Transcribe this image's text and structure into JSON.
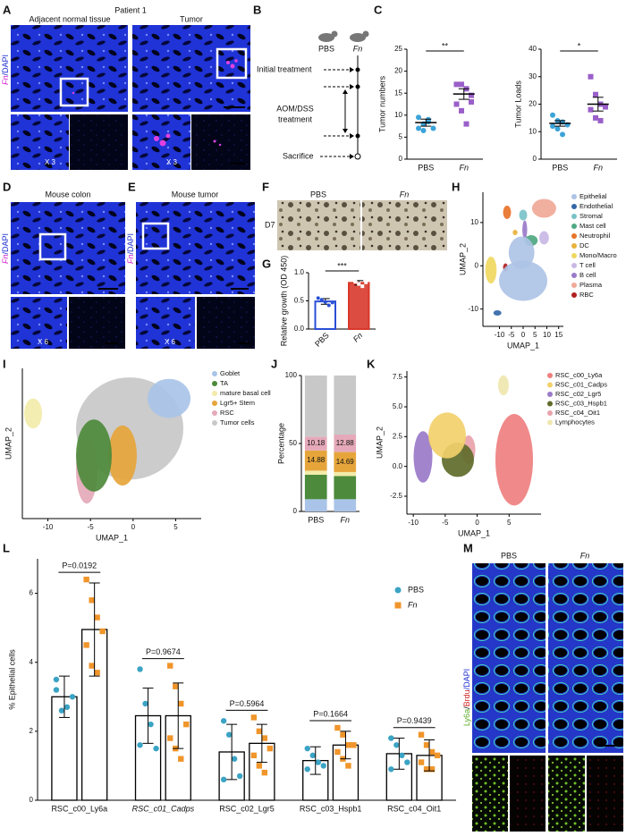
{
  "panels": {
    "letters": [
      "A",
      "B",
      "C",
      "D",
      "E",
      "F",
      "G",
      "H",
      "I",
      "J",
      "K",
      "L",
      "M"
    ]
  },
  "A": {
    "title": "Patient 1",
    "left": "Adjacent normal tissue",
    "right": "Tumor",
    "stain": [
      "Fn",
      "/DAPI"
    ],
    "zoom": [
      "X 3",
      "X 3"
    ]
  },
  "B": {
    "groups": [
      "PBS",
      "Fn"
    ],
    "steps": [
      "Initial treatment",
      "AOM/DSS",
      "treatment",
      "Sacrifice"
    ]
  },
  "D": {
    "title": "Mouse colon",
    "stain": [
      "Fn",
      "/DAPI"
    ],
    "zoom": "X 6"
  },
  "E": {
    "title": "Mouse tumor",
    "stain": [
      "Fn",
      "/DAPI"
    ],
    "zoom": "X 6"
  },
  "F": {
    "groups": [
      "PBS",
      "Fn"
    ],
    "day": "D7"
  },
  "M": {
    "groups": [
      "PBS",
      "Fn"
    ],
    "stain": [
      "Ly6a",
      "/",
      "Brdu",
      "/DAPI"
    ]
  },
  "chart_data": [
    {
      "type": "dot",
      "ylabel": "Tumor numbers",
      "categories": [
        "PBS",
        "Fn"
      ],
      "colors": [
        "#3ba3d9",
        "#9a5fc9"
      ],
      "markers": [
        "circle",
        "square"
      ],
      "points": [
        [
          9.5,
          8,
          8.5,
          7,
          7,
          6.5,
          9
        ],
        [
          17,
          17,
          16,
          14.5,
          12.5,
          11,
          8,
          13
        ]
      ],
      "means": [
        8.3,
        14.8
      ],
      "errors": [
        0.8,
        1.2
      ],
      "ylim": [
        0,
        25
      ],
      "yticks": [
        0,
        5,
        10,
        15,
        20,
        25
      ],
      "significance": "**"
    },
    {
      "type": "dot",
      "ylabel": "Tumor Loads",
      "categories": [
        "PBS",
        "Fn"
      ],
      "colors": [
        "#3ba3d9",
        "#9a5fc9"
      ],
      "markers": [
        "circle",
        "square"
      ],
      "points": [
        [
          16,
          14,
          13.5,
          12.5,
          12,
          11,
          9
        ],
        [
          30,
          23.5,
          20,
          19,
          18,
          15,
          14
        ]
      ],
      "means": [
        13,
        20
      ],
      "errors": [
        1,
        2.5
      ],
      "ylim": [
        0,
        40
      ],
      "yticks": [
        0,
        10,
        20,
        30,
        40
      ],
      "significance": "*"
    },
    {
      "type": "bar_dot",
      "ylabel": "Relative growth (OD 450)",
      "categories": [
        "PBS",
        "Fn"
      ],
      "colors": [
        "#2a4fd6",
        "#d9382b"
      ],
      "values": [
        0.49,
        0.82
      ],
      "errors": [
        0.05,
        0.04
      ],
      "points": [
        [
          0.55,
          0.52,
          0.48,
          0.42,
          0.47
        ],
        [
          0.88,
          0.84,
          0.8,
          0.76,
          0.83
        ]
      ],
      "ylim": [
        0,
        1
      ],
      "yticks": [
        {
          "value": 0,
          "label": "0.0"
        },
        {
          "value": 0.5,
          "label": "0.5"
        },
        {
          "value": 1,
          "label": "1.0"
        }
      ],
      "significance": "***"
    },
    {
      "type": "umap",
      "xlabel": "UMAP_1",
      "ylabel": "UMAP_2",
      "xlim": [
        -17,
        17
      ],
      "xticks": [
        -10,
        -5,
        0,
        5,
        10,
        15
      ],
      "ylim": [
        -14,
        17
      ],
      "yticks": [
        -10,
        0,
        10
      ],
      "legend": "right",
      "series": [
        {
          "name": "Epithelial",
          "color": "#aec3e6"
        },
        {
          "name": "Endothelial",
          "color": "#3366a8"
        },
        {
          "name": "Stromal",
          "color": "#78c2c8"
        },
        {
          "name": "Mast cell",
          "color": "#4fa882"
        },
        {
          "name": "Neutrophil",
          "color": "#e8732a"
        },
        {
          "name": "DC",
          "color": "#e8b23a"
        },
        {
          "name": "Mono/Macro",
          "color": "#f0d860"
        },
        {
          "name": "T cell",
          "color": "#c9b8e6"
        },
        {
          "name": "B cell",
          "color": "#9a7ac9"
        },
        {
          "name": "Plasma",
          "color": "#f0a898"
        },
        {
          "name": "RBC",
          "color": "#b02020"
        }
      ]
    },
    {
      "type": "umap",
      "xlabel": "UMAP_1",
      "ylabel": "UMAP_2",
      "xlim": [
        -13,
        8
      ],
      "xticks": [
        -10,
        -5,
        0,
        5
      ],
      "legend": "right",
      "series": [
        {
          "name": "Goblet",
          "color": "#a9c4e8"
        },
        {
          "name": "TA",
          "color": "#4d8a3c"
        },
        {
          "name": "mature basal cell",
          "color": "#f2ebaa"
        },
        {
          "name": "Lgr5+ Stem",
          "color": "#e6a53b"
        },
        {
          "name": "RSC",
          "color": "#e5a9b9"
        },
        {
          "name": "Tumor cells",
          "color": "#c8c8c8"
        }
      ]
    },
    {
      "type": "stacked_bar",
      "ylabel": "Percentage",
      "categories": [
        "PBS",
        "Fn"
      ],
      "ylim": [
        0,
        100
      ],
      "yticks": [
        0,
        50,
        100
      ],
      "series": [
        {
          "name": "Goblet",
          "color": "#a9c4e8",
          "values": [
            9,
            9
          ]
        },
        {
          "name": "TA",
          "color": "#4d8a3c",
          "values": [
            18,
            17
          ]
        },
        {
          "name": "mature basal cell",
          "color": "#f2ebaa",
          "values": [
            3,
            3
          ]
        },
        {
          "name": "Lgr5+ Stem",
          "color": "#e6a53b",
          "values": [
            14.88,
            14.69
          ],
          "show_labels": true
        },
        {
          "name": "RSC",
          "color": "#e5a9b9",
          "values": [
            10.18,
            12.88
          ],
          "show_labels": true
        },
        {
          "name": "Tumor cells",
          "color": "#c8c8c8",
          "values": [
            44.94,
            43.43
          ]
        }
      ]
    },
    {
      "type": "umap",
      "xlabel": "UMAP_1",
      "ylabel": "UMAP_2",
      "xlim": [
        -11,
        10
      ],
      "xticks": [
        -10,
        -5,
        0,
        5
      ],
      "ylim": [
        -4,
        8
      ],
      "yticks": [
        -2.5,
        {
          "value": 0,
          "label": "0.0"
        },
        2.5,
        {
          "value": 5,
          "label": "5.0"
        },
        7.5
      ],
      "legend": "right",
      "series": [
        {
          "name": "RSC_c00_Ly6a",
          "color": "#ef7f7f"
        },
        {
          "name": "RSC_c01_Cadps",
          "color": "#f2d06b"
        },
        {
          "name": "RSC_c02_Lgr5",
          "color": "#9a7ac9"
        },
        {
          "name": "RSC_c03_Hspb1",
          "color": "#5f6b2a"
        },
        {
          "name": "RSC_c04_Oit1",
          "color": "#e9a3ab"
        },
        {
          "name": "Lymphocytes",
          "color": "#efe7b0"
        }
      ]
    },
    {
      "type": "grouped_bar",
      "ylabel": "% Epithelial cells",
      "categories": [
        "RSC_c00_Ly6a",
        "RSC_c01_Cadps",
        "RSC_c02_Lgr5",
        "RSC_c03_Hspb1",
        "RSC_c04_Oit1"
      ],
      "ylim": [
        0,
        7
      ],
      "yticks": [
        0,
        2,
        4,
        6
      ],
      "legend": "top-right",
      "series": [
        {
          "name": "PBS",
          "color": "#3ba3c4",
          "marker": "circle",
          "values": [
            3.0,
            2.45,
            1.4,
            1.15,
            1.35
          ],
          "errors": [
            0.6,
            0.8,
            0.8,
            0.4,
            0.45
          ],
          "points": [
            [
              3.2,
              2.6,
              2.7,
              3.0,
              3.5
            ],
            [
              3.8,
              2.8,
              2.2,
              1.5,
              1.6
            ],
            [
              2.3,
              1.9,
              1.2,
              0.7,
              0.6
            ],
            [
              1.5,
              1.3,
              1.1,
              1.0,
              0.9
            ],
            [
              1.8,
              1.6,
              1.3,
              1.1,
              0.9
            ]
          ]
        },
        {
          "name": "Fn",
          "color": "#f0952b",
          "marker": "square",
          "values": [
            4.95,
            2.45,
            1.65,
            1.6,
            1.3
          ],
          "errors": [
            1.35,
            0.95,
            0.55,
            0.4,
            0.45
          ],
          "points": [
            [
              6.4,
              5.8,
              5.3,
              4.9,
              4.5,
              3.9,
              3.7
            ],
            [
              3.9,
              3.3,
              2.8,
              2.2,
              1.8,
              1.5,
              1.2
            ],
            [
              2.4,
              2.0,
              1.8,
              1.5,
              1.3,
              1.0,
              0.8
            ],
            [
              2.1,
              1.9,
              1.6,
              1.6,
              1.4,
              1.2,
              1.0
            ],
            [
              1.9,
              1.6,
              1.4,
              1.3,
              1.1,
              0.9,
              0.9
            ]
          ]
        }
      ],
      "annotations": [
        "P=0.0192",
        "P=0.9674",
        "P=0.5964",
        "P=0.1664",
        "P=0.9439"
      ]
    }
  ]
}
